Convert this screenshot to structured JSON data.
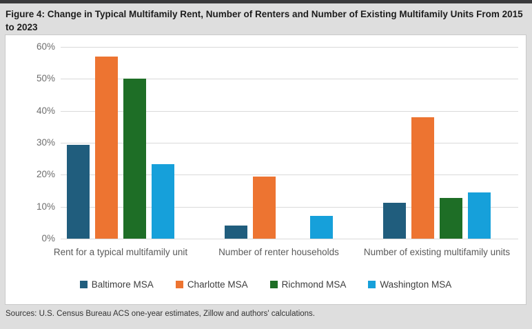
{
  "title": "Figure 4: Change in Typical Multifamily Rent, Number of Renters and Number of Existing Multifamily Units From 2015 to 2023",
  "footer": {
    "sources": "Sources: U.S. Census Bureau ACS one-year estimates, Zillow and authors' calculations."
  },
  "chart_data": {
    "type": "bar",
    "title": "Figure 4: Change in Typical Multifamily Rent, Number of Renters and Number of Existing Multifamily Units From 2015 to 2023",
    "categories": [
      "Rent for a typical multifamily unit",
      "Number of renter households",
      "Number of existing multifamily units"
    ],
    "series": [
      {
        "name": "Baltimore MSA",
        "color": "#205d7d",
        "values": [
          29.4,
          4.2,
          11.3
        ]
      },
      {
        "name": "Charlotte MSA",
        "color": "#ed7431",
        "values": [
          57.0,
          19.4,
          38.0
        ]
      },
      {
        "name": "Richmond MSA",
        "color": "#1e6e26",
        "values": [
          50.0,
          0,
          12.8
        ]
      },
      {
        "name": "Washington MSA",
        "color": "#16a0da",
        "values": [
          23.4,
          7.2,
          14.5
        ]
      }
    ],
    "xlabel": "",
    "ylabel": "",
    "ylim": [
      0,
      60
    ],
    "ytick_labels": [
      "0%",
      "10%",
      "20%",
      "30%",
      "40%",
      "50%",
      "60%"
    ],
    "grid": true,
    "legend_position": "bottom",
    "gridline_color": "#d9d9d9",
    "plot_background": "#ffffff"
  }
}
